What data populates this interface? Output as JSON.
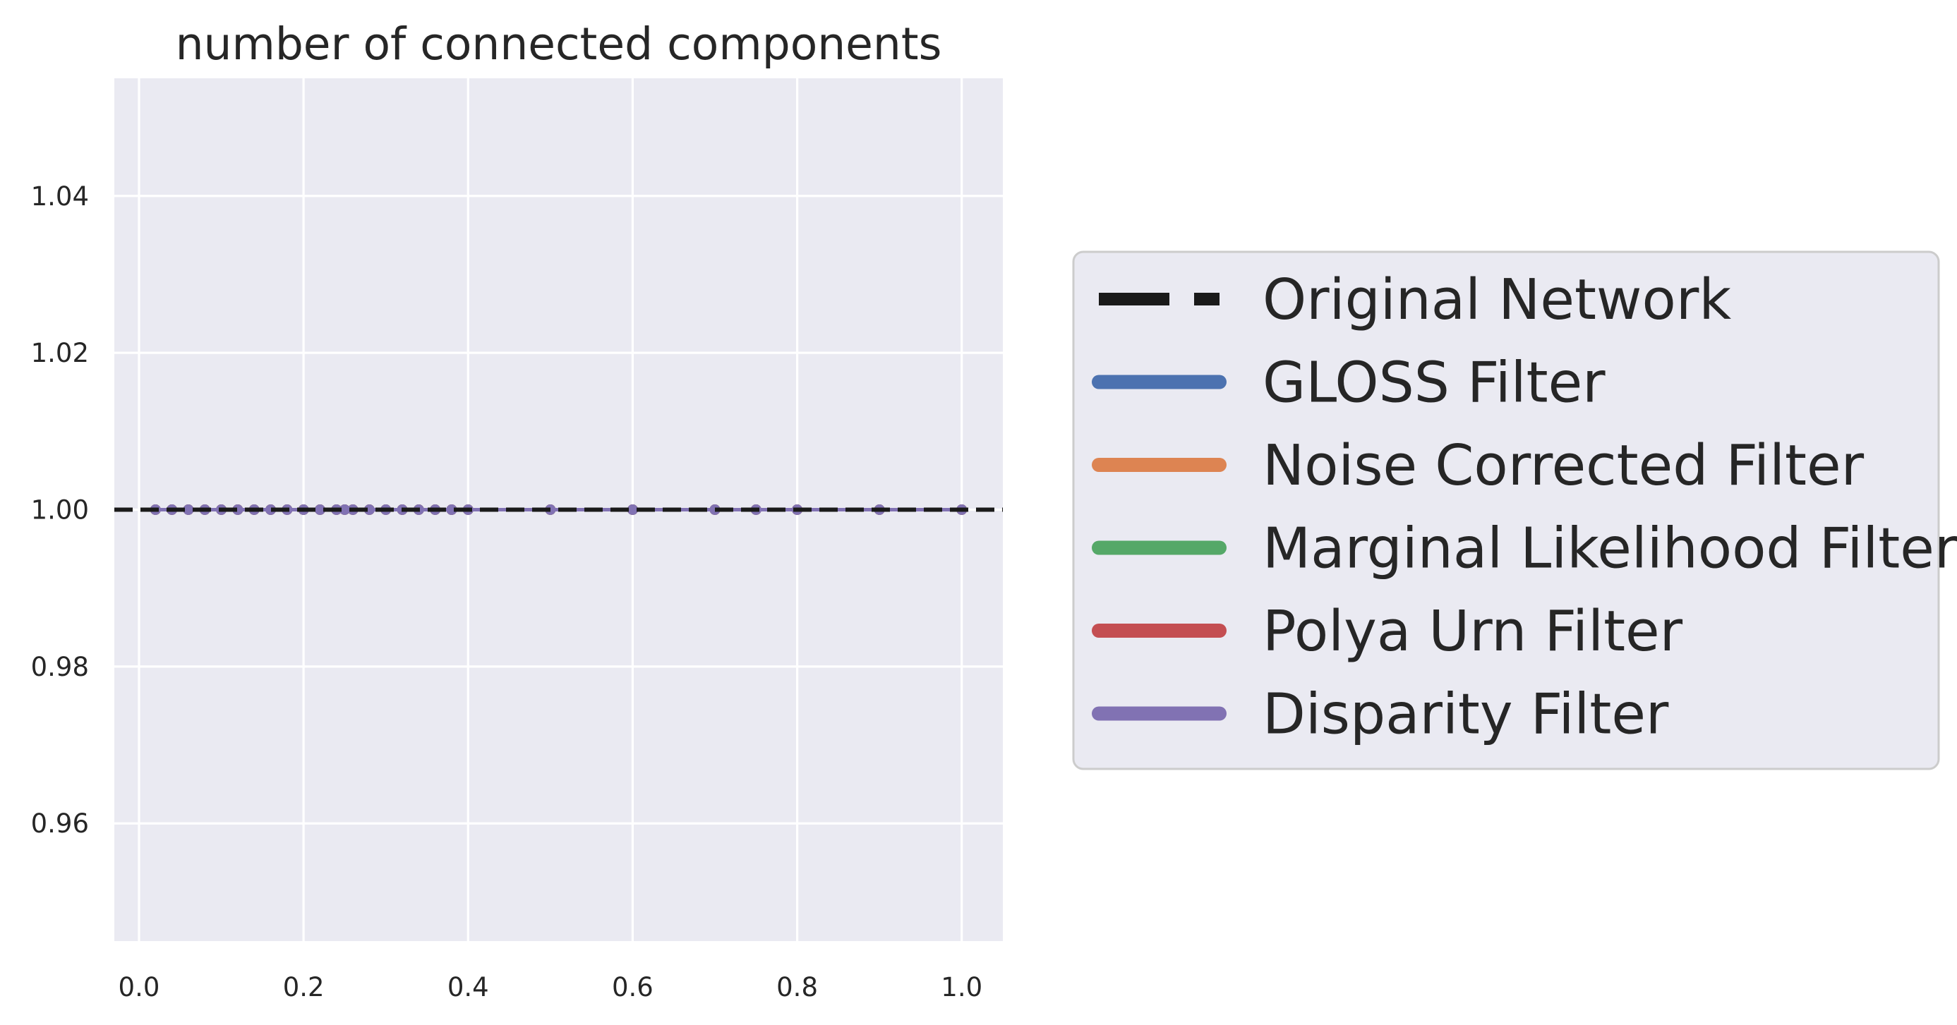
{
  "chart_data": {
    "type": "line",
    "title": "number of connected components",
    "xlabel": "",
    "ylabel": "",
    "xlim": [
      -0.03,
      1.05
    ],
    "ylim": [
      0.945,
      1.055
    ],
    "x_ticks": [
      0.0,
      0.2,
      0.4,
      0.6,
      0.8,
      1.0
    ],
    "x_tick_labels": [
      "0.0",
      "0.2",
      "0.4",
      "0.6",
      "0.8",
      "1.0"
    ],
    "y_ticks": [
      0.96,
      0.98,
      1.0,
      1.02,
      1.04
    ],
    "y_tick_labels": [
      "0.96",
      "0.98",
      "1.00",
      "1.02",
      "1.04"
    ],
    "grid": true,
    "legend_position": "right",
    "reference_line": {
      "name": "Original Network",
      "y": 1.0,
      "style": "dashed",
      "color": "#1a1a1a"
    },
    "series": [
      {
        "name": "GLOSS Filter",
        "color": "#4c72b0",
        "x": [
          0.02,
          0.04,
          0.06,
          0.08,
          0.1,
          0.12,
          0.14,
          0.16,
          0.18,
          0.2,
          0.22,
          0.24,
          0.25,
          0.26,
          0.28,
          0.3,
          0.32,
          0.34,
          0.36,
          0.38,
          0.4,
          0.5,
          0.6,
          0.7,
          0.75,
          0.8,
          0.9,
          1.0
        ],
        "y": [
          1,
          1,
          1,
          1,
          1,
          1,
          1,
          1,
          1,
          1,
          1,
          1,
          1,
          1,
          1,
          1,
          1,
          1,
          1,
          1,
          1,
          1,
          1,
          1,
          1,
          1,
          1,
          1
        ]
      },
      {
        "name": "Noise Corrected Filter",
        "color": "#dd8452",
        "x": [
          0.02,
          0.04,
          0.06,
          0.08,
          0.1,
          0.12,
          0.14,
          0.16,
          0.18,
          0.2,
          0.22,
          0.24,
          0.25,
          0.26,
          0.28,
          0.3,
          0.32,
          0.34,
          0.36,
          0.38,
          0.4,
          0.5,
          0.6,
          0.7,
          0.75,
          0.8,
          0.9,
          1.0
        ],
        "y": [
          1,
          1,
          1,
          1,
          1,
          1,
          1,
          1,
          1,
          1,
          1,
          1,
          1,
          1,
          1,
          1,
          1,
          1,
          1,
          1,
          1,
          1,
          1,
          1,
          1,
          1,
          1,
          1
        ]
      },
      {
        "name": "Marginal Likelihood Filter",
        "color": "#55a868",
        "x": [
          0.02,
          0.04,
          0.06,
          0.08,
          0.1,
          0.12,
          0.14,
          0.16,
          0.18,
          0.2,
          0.22,
          0.24,
          0.25,
          0.26,
          0.28,
          0.3,
          0.32,
          0.34,
          0.36,
          0.38,
          0.4,
          0.5,
          0.6,
          0.7,
          0.75,
          0.8,
          0.9,
          1.0
        ],
        "y": [
          1,
          1,
          1,
          1,
          1,
          1,
          1,
          1,
          1,
          1,
          1,
          1,
          1,
          1,
          1,
          1,
          1,
          1,
          1,
          1,
          1,
          1,
          1,
          1,
          1,
          1,
          1,
          1
        ]
      },
      {
        "name": "Polya Urn Filter",
        "color": "#c44e52",
        "x": [
          0.02,
          0.04,
          0.06,
          0.08,
          0.1,
          0.12,
          0.14,
          0.16,
          0.18,
          0.2,
          0.22,
          0.24,
          0.25,
          0.26,
          0.28,
          0.3,
          0.32,
          0.34,
          0.36,
          0.38,
          0.4,
          0.5,
          0.6,
          0.7,
          0.75,
          0.8,
          0.9,
          1.0
        ],
        "y": [
          1,
          1,
          1,
          1,
          1,
          1,
          1,
          1,
          1,
          1,
          1,
          1,
          1,
          1,
          1,
          1,
          1,
          1,
          1,
          1,
          1,
          1,
          1,
          1,
          1,
          1,
          1,
          1
        ]
      },
      {
        "name": "Disparity Filter",
        "color": "#8172b3",
        "x": [
          0.02,
          0.04,
          0.06,
          0.08,
          0.1,
          0.12,
          0.14,
          0.16,
          0.18,
          0.2,
          0.22,
          0.24,
          0.25,
          0.26,
          0.28,
          0.3,
          0.32,
          0.34,
          0.36,
          0.38,
          0.4,
          0.5,
          0.6,
          0.7,
          0.75,
          0.8,
          0.9,
          1.0
        ],
        "y": [
          1,
          1,
          1,
          1,
          1,
          1,
          1,
          1,
          1,
          1,
          1,
          1,
          1,
          1,
          1,
          1,
          1,
          1,
          1,
          1,
          1,
          1,
          1,
          1,
          1,
          1,
          1,
          1
        ]
      }
    ],
    "colors": {
      "plot_background": "#eaeaf2",
      "grid": "#ffffff",
      "legend_background": "#eaeaf2",
      "legend_border": "#cccccc",
      "text": "#262626"
    }
  }
}
